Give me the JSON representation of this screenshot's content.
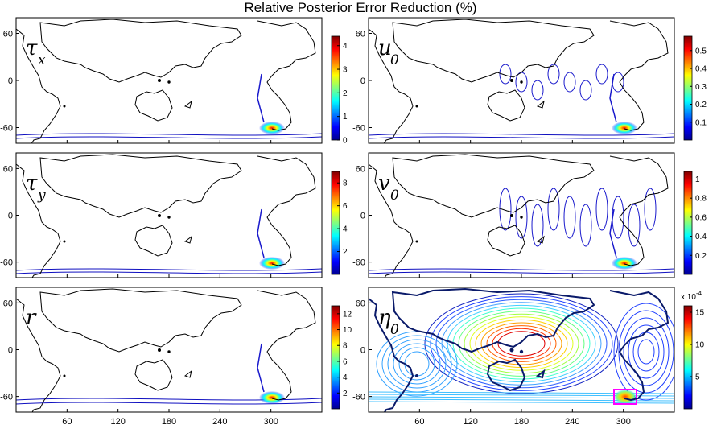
{
  "chart_data": {
    "type": "heatmap",
    "title": "Relative Posterior Error Reduction (%)",
    "x_ticks": [
      "60",
      "120",
      "180",
      "240",
      "300"
    ],
    "y_ticks": [
      "60",
      "0",
      "-60"
    ],
    "panels": [
      {
        "id": "tau_x",
        "label_main": "τ",
        "label_sub": "x",
        "colorbar_ticks": [
          "0",
          "1",
          "2",
          "3",
          "4"
        ],
        "colorbar_max": 4.4,
        "colorbar_exponent": ""
      },
      {
        "id": "u_0",
        "label_main": "u",
        "label_sub": "0",
        "colorbar_ticks": [
          "0.1",
          "0.2",
          "0.3",
          "0.4",
          "0.5"
        ],
        "colorbar_max": 0.58,
        "colorbar_exponent": ""
      },
      {
        "id": "tau_y",
        "label_main": "τ",
        "label_sub": "y",
        "colorbar_ticks": [
          "2",
          "4",
          "6",
          "8"
        ],
        "colorbar_max": 9,
        "colorbar_exponent": ""
      },
      {
        "id": "v_0",
        "label_main": "v",
        "label_sub": "0",
        "colorbar_ticks": [
          "0.2",
          "0.4",
          "0.6",
          "0.8",
          "1"
        ],
        "colorbar_max": 1.08,
        "colorbar_exponent": ""
      },
      {
        "id": "r",
        "label_main": "r",
        "label_sub": "",
        "colorbar_ticks": [
          "2",
          "4",
          "6",
          "8",
          "10",
          "12"
        ],
        "colorbar_max": 13,
        "colorbar_exponent": ""
      },
      {
        "id": "eta_0",
        "label_main": "η",
        "label_sub": "0",
        "colorbar_ticks": [
          "5",
          "10",
          "15"
        ],
        "colorbar_max": 16,
        "colorbar_exponent": "x 10^-4"
      }
    ]
  }
}
